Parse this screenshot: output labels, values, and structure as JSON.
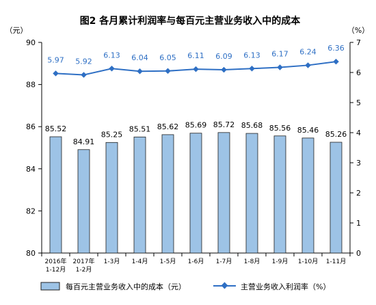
{
  "chart_data": {
    "type": "bar",
    "title": "图2  各月累计利润率与每百元主营业务收入中的成本",
    "left_unit": "（元）",
    "right_unit": "（%）",
    "categories": [
      [
        "2016年",
        "1-12月"
      ],
      [
        "2017年",
        "1-2月"
      ],
      [
        "1-3月"
      ],
      [
        "1-4月"
      ],
      [
        "1-5月"
      ],
      [
        "1-6月"
      ],
      [
        "1-7月"
      ],
      [
        "1-8月"
      ],
      [
        "1-9月"
      ],
      [
        "1-10月"
      ],
      [
        "1-11月"
      ]
    ],
    "y_left": {
      "min": 80,
      "max": 90,
      "ticks": [
        80,
        82,
        84,
        86,
        88,
        90
      ]
    },
    "y_right": {
      "min": 0,
      "max": 7,
      "ticks": [
        0,
        1,
        2,
        3,
        4,
        5,
        6,
        7
      ]
    },
    "grid": false,
    "legend_position": "bottom",
    "colors": {
      "bar_fill": "#9dc3e6",
      "bar_stroke": "#1f1f1f",
      "line": "#2e6fc4",
      "line_label": "#2e6fc4",
      "axis": "#000000",
      "text": "#000000"
    },
    "series": [
      {
        "name": "每百元主营业务收入中的成本（元）",
        "type": "bar",
        "axis": "left",
        "values": [
          85.52,
          84.91,
          85.25,
          85.51,
          85.62,
          85.69,
          85.72,
          85.68,
          85.56,
          85.46,
          85.26
        ],
        "labels": [
          "85.52",
          "84.91",
          "85.25",
          "85.51",
          "85.62",
          "85.69",
          "85.72",
          "85.68",
          "85.56",
          "85.46",
          "85.26"
        ]
      },
      {
        "name": "主营业务收入利润率（%）",
        "type": "line",
        "axis": "right",
        "values": [
          5.97,
          5.92,
          6.13,
          6.04,
          6.05,
          6.11,
          6.09,
          6.13,
          6.17,
          6.24,
          6.36
        ],
        "labels": [
          "5.97",
          "5.92",
          "6.13",
          "6.04",
          "6.05",
          "6.11",
          "6.09",
          "6.13",
          "6.17",
          "6.24",
          "6.36"
        ]
      }
    ]
  }
}
